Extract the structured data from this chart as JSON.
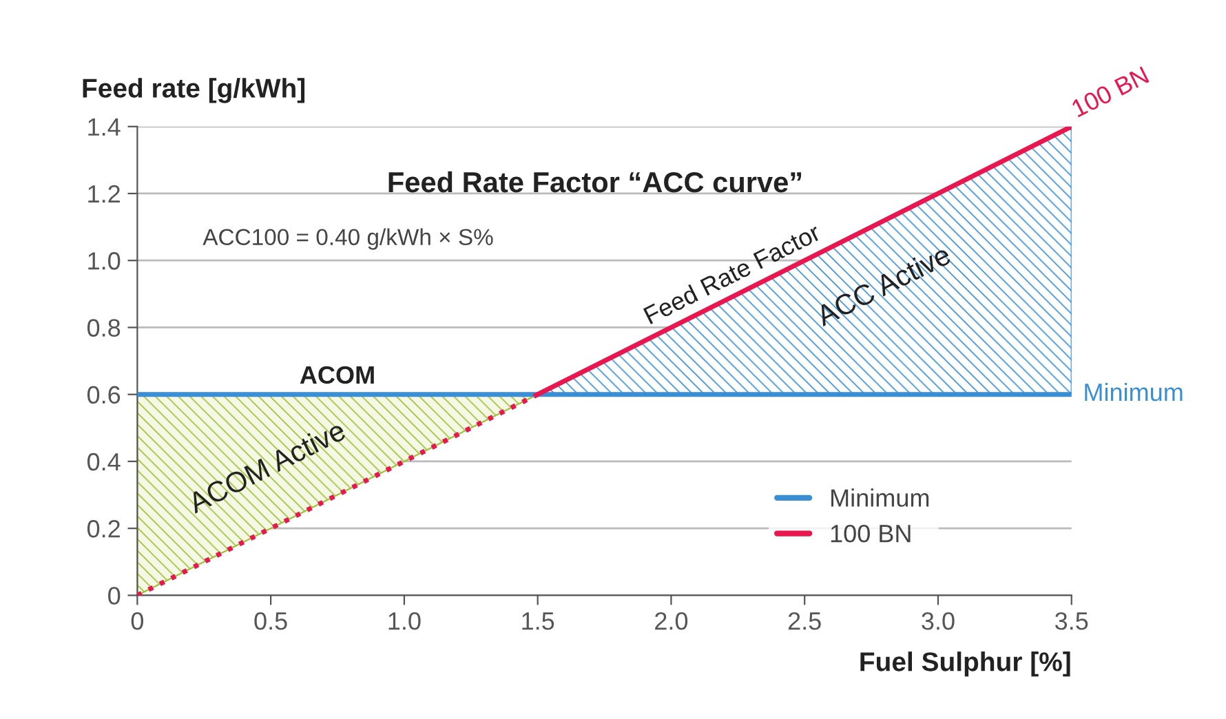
{
  "chart_data": {
    "type": "line",
    "title": "Feed Rate Factor “ACC curve”",
    "xlabel": "Fuel Sulphur [%]",
    "ylabel": "Feed rate [g/kWh]",
    "series": [
      {
        "name": "Minimum",
        "color": "#3a8fd4",
        "x": [
          0,
          3.5
        ],
        "values": [
          0.6,
          0.6
        ],
        "line_style": "solid"
      },
      {
        "name": "100 BN",
        "color": "#e8174f",
        "x": [
          1.5,
          3.5
        ],
        "values": [
          0.6,
          1.4
        ],
        "line_style": "solid"
      },
      {
        "color": "#e8174f",
        "x": [
          0,
          1.5
        ],
        "values": [
          0,
          0.6
        ],
        "line_style": "dotted"
      }
    ],
    "annotations": [
      "ACC100 = 0.40 g/kWh × S%",
      {
        "text": "ACOM",
        "x": 0.75,
        "y": 0.6
      },
      {
        "text": "Feed Rate Factor",
        "x": 2.25,
        "y": 0.9
      },
      "ACC Active",
      "ACOM Active",
      {
        "text": "100 BN",
        "x": 3.5,
        "y": 1.4
      },
      {
        "text": "Minimum",
        "x": 3.5,
        "y": 0.6
      }
    ],
    "xlim": [
      0,
      3.5
    ],
    "ylim": [
      0,
      1.4
    ],
    "xticks": [
      0,
      0.5,
      {
        "value": 1,
        "label": "1.0"
      },
      1.5,
      {
        "value": 2,
        "label": "2.0"
      },
      2.5,
      {
        "value": 3,
        "label": "3.0"
      },
      3.5
    ],
    "yticks": [
      0,
      0.2,
      0.4,
      0.6,
      0.8,
      {
        "value": 1,
        "label": "1.0"
      },
      1.2,
      1.4
    ],
    "grid": "y",
    "legend": "bottom right"
  }
}
